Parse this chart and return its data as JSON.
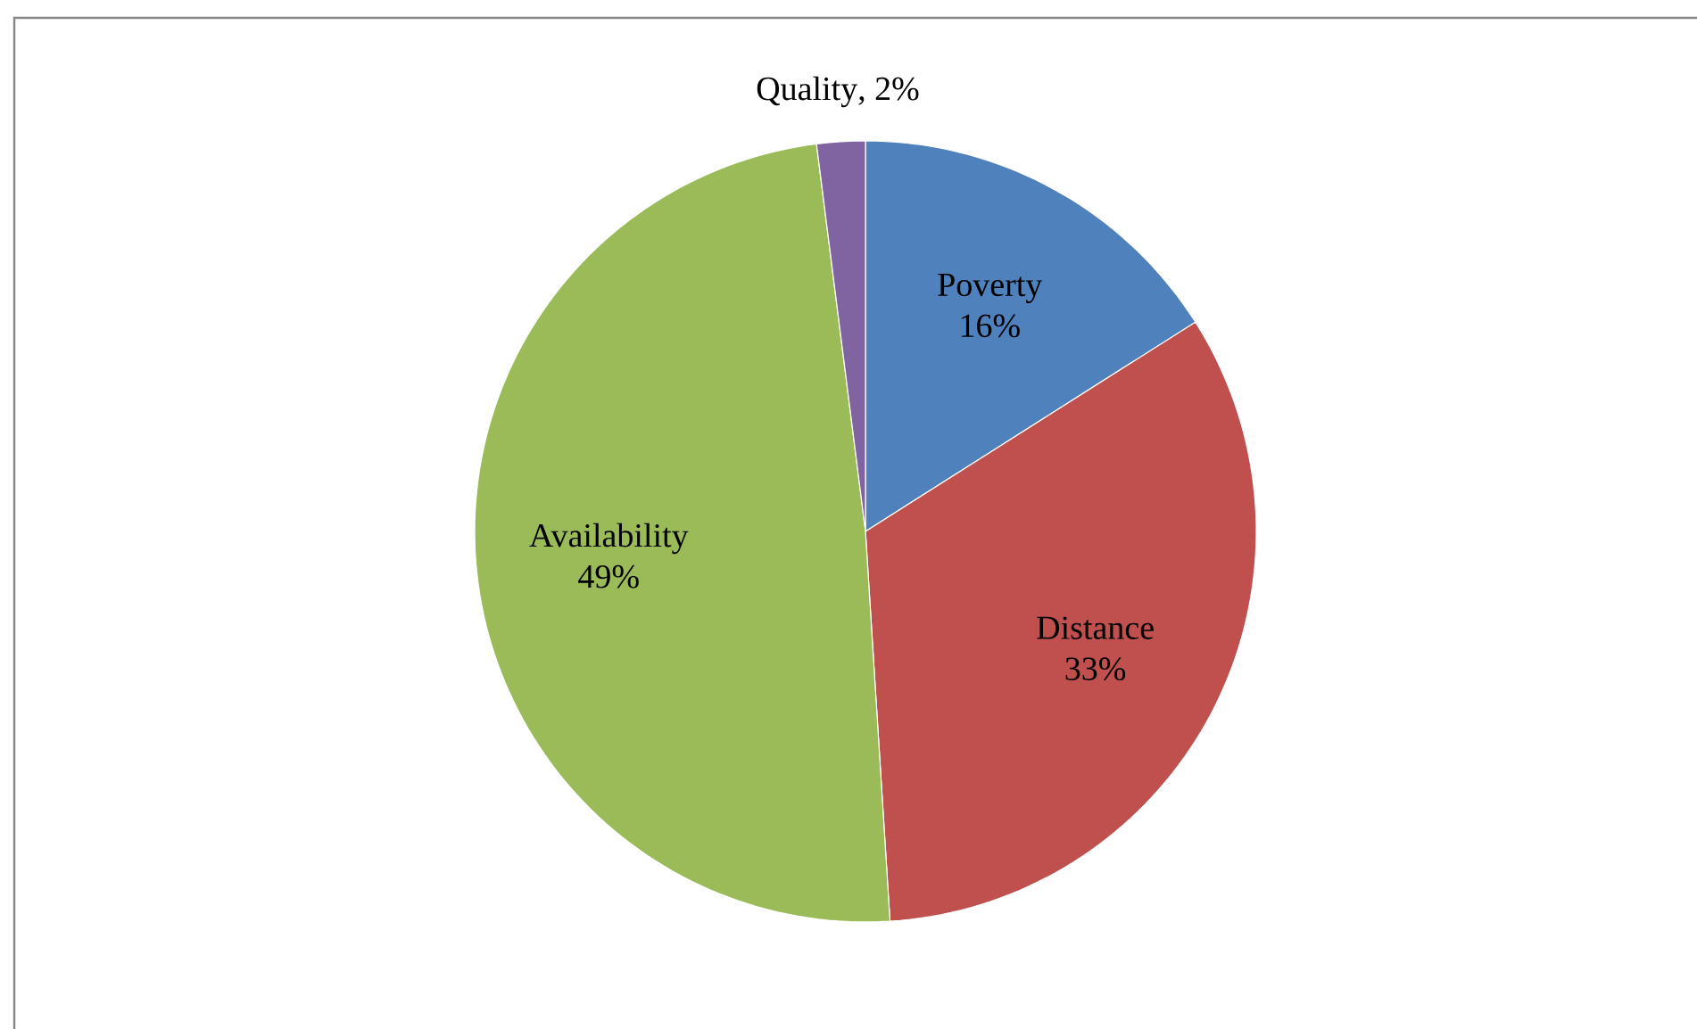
{
  "chart_data": {
    "type": "pie",
    "categories": [
      "Poverty",
      "Distance",
      "Availability",
      "Quality"
    ],
    "values": [
      16,
      33,
      49,
      2
    ],
    "colors": [
      "#4f81bd",
      "#c0504d",
      "#9bbb59",
      "#8064a2"
    ],
    "value_labels": [
      "16%",
      "33%",
      "49%",
      ", 2%"
    ]
  }
}
